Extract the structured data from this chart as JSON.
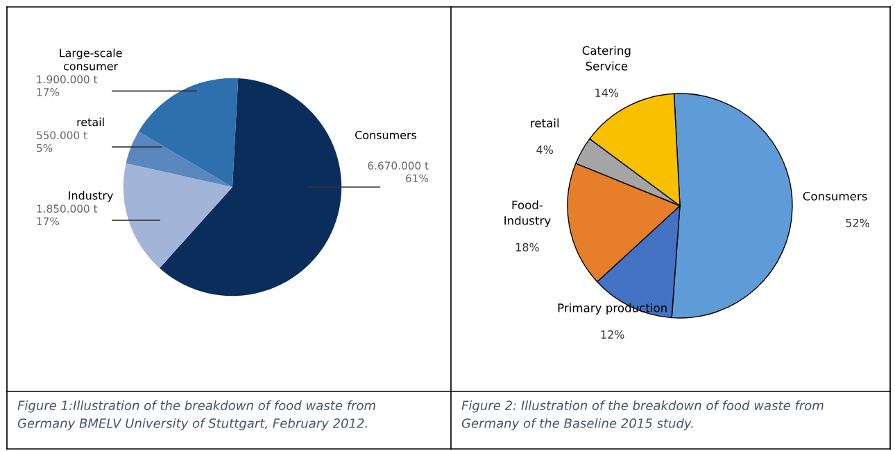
{
  "chart_data": [
    {
      "type": "pie",
      "categories": [
        "Consumers",
        "Industry",
        "retail",
        "Large-scale consumer"
      ],
      "values": [
        6670000,
        1850000,
        550000,
        1900000
      ],
      "colors": [
        "#0b2d5b",
        "#a3b4d9",
        "#5b87bf",
        "#2e6fad"
      ],
      "value_labels": [
        "6.670.000 t\n61%",
        "1.850.000 t\n17%",
        "550.000 t\n5%",
        "1.900.000 t\n17%"
      ],
      "annotations": [
        "Figure 1:Illustration of the breakdown of food waste from Germany BMELV University of Stuttgart, February 2012."
      ]
    },
    {
      "type": "pie",
      "categories": [
        "Consumers",
        "Primary production",
        "Food-Industry",
        "retail",
        "Catering Service"
      ],
      "values": [
        52,
        12,
        18,
        4,
        14
      ],
      "colors": [
        "#5f9bd6",
        "#4472c4",
        "#e67e2a",
        "#a5a5a5",
        "#f9c000"
      ],
      "value_labels": [
        "52%",
        "12%",
        "18%",
        "4%",
        "14%"
      ],
      "annotations": [
        "Figure 2: Illustration of the breakdown of food waste from Germany of the Baseline 2015 study."
      ]
    }
  ]
}
